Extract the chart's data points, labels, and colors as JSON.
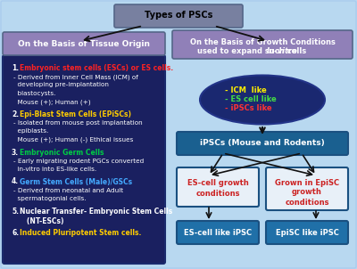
{
  "title": "Types of PSCs",
  "bg_color": "#b8d8f0",
  "left_header": "On the Basis of Tissue Origin",
  "right_header_line1": "On the Basis of Growth Conditions",
  "right_header_line2": "used to expand such cells ",
  "right_header_italic": "In-vitro",
  "left_header_bg": "#9080b8",
  "right_header_bg": "#9080b8",
  "left_box_bg": "#1a2060",
  "ellipse_bg": "#1a2870",
  "ipsc_box_bg": "#1a6090",
  "es_growth_bg": "#e8f0f8",
  "episc_growth_bg": "#e8f0f8",
  "es_cell_bg": "#2070a8",
  "episc_cell_bg": "#2070a8",
  "title_box_bg": "#7880a0",
  "left_items": [
    {
      "num": "1.",
      "label": "Embryonic stem cells (ESCs) or ES cells.",
      "label_color": "#ff2222",
      "body": [
        "- Derived from Inner Cell Mass (ICM) of",
        "  developing pre-implantation",
        "  blastocysts.",
        "  Mouse (+); Human (+)"
      ]
    },
    {
      "num": "2.",
      "label": "Epi-Blast Stem Cells (EPiSCs)",
      "label_color": "#ffcc00",
      "body": [
        "- Isolated from mouse post implantation",
        "  epiblasts.",
        "  Mouse (+); Human (-) Ethical issues"
      ]
    },
    {
      "num": "3.",
      "label": "Embryonic Germ Cells",
      "label_color": "#00cc44",
      "body": [
        "- Early migrating rodent PGCs converted",
        "  in-vitro into ES-like cells."
      ]
    },
    {
      "num": "4.",
      "label": "Germ Stem Cells (Male)/GSCs",
      "label_color": "#44aaff",
      "body": [
        "- Derived from neonatal and Adult",
        "  spermatogonial cells."
      ]
    },
    {
      "num": "5.",
      "label": "Nuclear Transfer- Embryonic Stem Cells",
      "label_color": "#ffffff",
      "label2": "   (NT-ESCs)",
      "body": []
    },
    {
      "num": "6.",
      "label": "Induced Pluripotent Stem cells.",
      "label_color": "#ffcc00",
      "body": []
    }
  ],
  "ellipse_lines": [
    {
      "text": "- ICM  like",
      "color": "#ffee00"
    },
    {
      "text": "- ES cell like",
      "color": "#44dd44"
    },
    {
      "text": "- iPSCs like",
      "color": "#ff3333"
    }
  ],
  "ipsc_label": "iPSCs (Mouse and Rodents)",
  "es_growth_label_line1": "ES-cell growth",
  "es_growth_label_line2": "conditions",
  "episc_growth_label_line1": "Grown in EpiSC",
  "episc_growth_label_line2": "growth",
  "episc_growth_label_line3": "conditions",
  "es_cell_label": "ES-cell like iPSC",
  "episc_cell_label": "EpiSC like iPSC",
  "arrow_color": "#111111"
}
